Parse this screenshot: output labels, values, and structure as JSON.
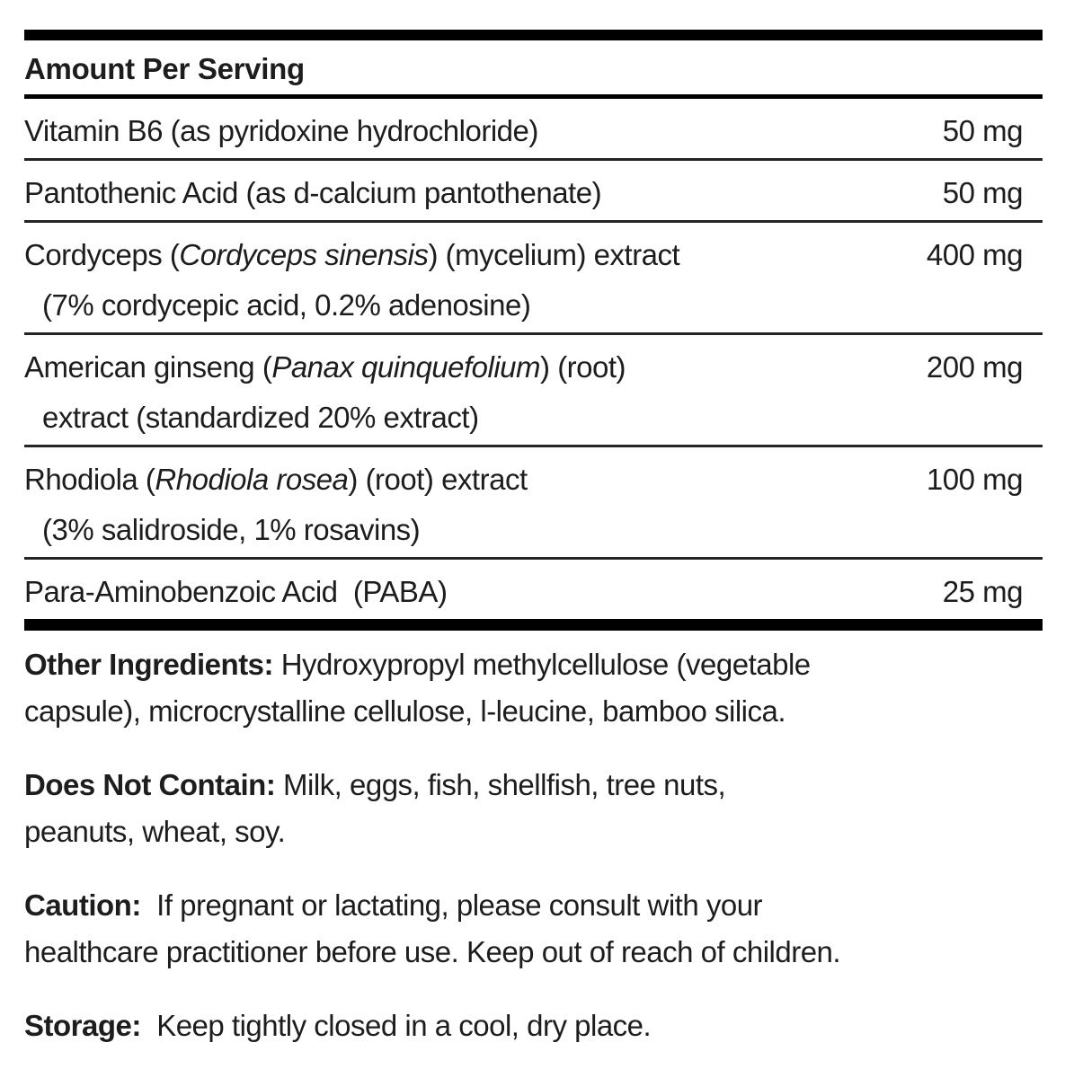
{
  "header": {
    "title": "Amount Per Serving"
  },
  "table": {
    "rows": [
      {
        "name_lines": [
          [
            {
              "t": "Vitamin B6 (as pyridoxine hydrochloride)"
            }
          ]
        ],
        "amount": "50 mg"
      },
      {
        "name_lines": [
          [
            {
              "t": "Pantothenic Acid (as d-calcium pantothenate)"
            }
          ]
        ],
        "amount": "50 mg"
      },
      {
        "name_lines": [
          [
            {
              "t": "Cordyceps ("
            },
            {
              "t": "Cordyceps sinensis",
              "i": true
            },
            {
              "t": ") (mycelium) extract"
            }
          ],
          [
            {
              "t": "(7% cordycepic acid, 0.2% adenosine)"
            }
          ]
        ],
        "amount": "400 mg"
      },
      {
        "name_lines": [
          [
            {
              "t": "American ginseng ("
            },
            {
              "t": "Panax quinquefolium",
              "i": true
            },
            {
              "t": ") (root)"
            }
          ],
          [
            {
              "t": "extract (standardized 20% extract)"
            }
          ]
        ],
        "amount": "200 mg"
      },
      {
        "name_lines": [
          [
            {
              "t": "Rhodiola ("
            },
            {
              "t": "Rhodiola rosea",
              "i": true
            },
            {
              "t": ") (root) extract"
            }
          ],
          [
            {
              "t": "(3% salidroside, 1% rosavins)"
            }
          ]
        ],
        "amount": "100 mg"
      },
      {
        "name_lines": [
          [
            {
              "t": "Para-Aminobenzoic Acid  (PABA)"
            }
          ]
        ],
        "amount": "25 mg"
      }
    ]
  },
  "paragraphs": [
    {
      "label": "Other Ingredients:",
      "text": " Hydroxypropyl methylcellulose (vegetable\ncapsule), microcrystalline cellulose, l-leucine, bamboo silica."
    },
    {
      "label": "Does Not Contain:",
      "text": " Milk, eggs, fish, shellfish, tree nuts,\npeanuts, wheat, soy."
    },
    {
      "label": "Caution:",
      "text": "  If pregnant or lactating, please consult with your\nhealthcare practitioner before use. Keep out of reach of children."
    },
    {
      "label": "Storage:",
      "text": "  Keep tightly closed in a cool, dry place."
    }
  ],
  "colors": {
    "text": "#1d1d1d",
    "rule": "#000000"
  }
}
